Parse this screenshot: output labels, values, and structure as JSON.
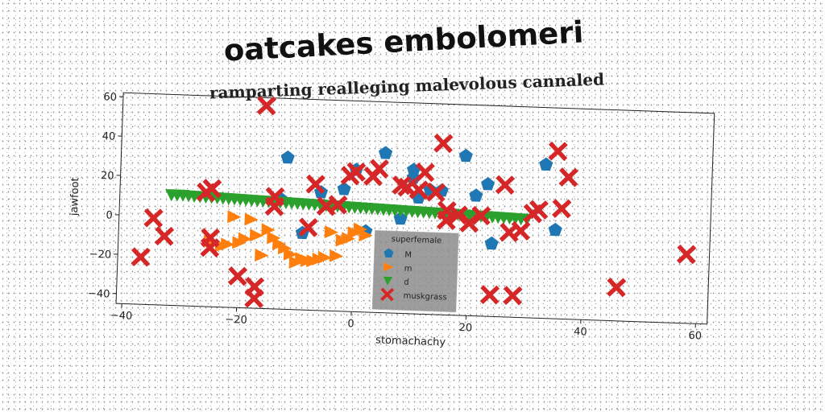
{
  "chart_data": {
    "type": "scatter",
    "title": "oatcakes embolomeri",
    "subtitle": "ramparting realleging malevolous cannaled",
    "xlabel": "stomachachy",
    "ylabel": "jawfoot",
    "xlim": [
      -41,
      62
    ],
    "ylim": [
      -45,
      62
    ],
    "xticks": [
      "−40",
      "−20",
      "0",
      "20",
      "40",
      "60"
    ],
    "xtick_values": [
      -40,
      -20,
      0,
      20,
      40,
      60
    ],
    "yticks": [
      "−40",
      "−20",
      "0",
      "20",
      "40",
      "60"
    ],
    "ytick_values": [
      -40,
      -20,
      0,
      20,
      40,
      60
    ],
    "grid": false,
    "legend": {
      "title": "superfemale",
      "position": "center-bottom"
    },
    "series": [
      {
        "name": "M",
        "marker": "pentagon",
        "color": "#1f77b4",
        "x": [
          -12,
          0,
          5,
          10,
          10,
          13,
          15,
          19,
          21,
          23,
          33,
          35,
          -13,
          -6,
          -2,
          2,
          8,
          11,
          -9,
          24
        ],
        "y": [
          32,
          27,
          36,
          28,
          24,
          18,
          18,
          36,
          16,
          22,
          33,
          0,
          11,
          15,
          17,
          -4,
          3,
          14,
          -6,
          -8
        ]
      },
      {
        "name": "m",
        "marker": "triangle-right",
        "color": "#ff7f0e",
        "x": [
          -21,
          -18,
          -15,
          -14,
          -13,
          -12,
          -11,
          -9,
          -8,
          -7,
          -6,
          -5,
          -3,
          -2,
          -1,
          0,
          1,
          -25,
          -23,
          -22,
          -20,
          -19,
          -17,
          -16,
          -10,
          -4,
          2
        ],
        "y": [
          1,
          0,
          -5,
          -9,
          -12,
          -14,
          -17,
          -19,
          -20,
          -20,
          -19,
          -18,
          -17,
          -9,
          -8,
          -5,
          -3,
          -12,
          -14,
          -13,
          -12,
          -10,
          -8,
          -18,
          -21,
          -5,
          -6
        ]
      },
      {
        "name": "d",
        "marker": "triangle-down",
        "color": "#2ca02c",
        "x": [
          -32,
          -31,
          -30,
          -29,
          -28,
          -27,
          -26,
          -25,
          -24,
          -23,
          -22,
          -21,
          -20,
          -19,
          -18,
          -17,
          -16,
          -15,
          -14,
          -13,
          -12,
          -11,
          -10,
          -9,
          -8,
          -7,
          -6,
          -5,
          -4,
          -3,
          -2,
          -1,
          0,
          1,
          2,
          3,
          4,
          5,
          6,
          7,
          8,
          9,
          10,
          11,
          12,
          13,
          14,
          15,
          16,
          17,
          18,
          19,
          20,
          21,
          22,
          23,
          24,
          25,
          26,
          27,
          28,
          29,
          30
        ],
        "y": [
          11,
          11,
          11,
          10.8,
          10.7,
          10.6,
          10.5,
          10.4,
          10.3,
          10.2,
          10.1,
          10,
          9.9,
          9.8,
          9.7,
          9.6,
          9.5,
          9.4,
          9.3,
          9.2,
          9.1,
          9,
          8.9,
          8.8,
          8.7,
          8.6,
          8.5,
          8.4,
          8.3,
          8.2,
          8.1,
          8,
          7.9,
          7.8,
          7.7,
          7.6,
          7.5,
          7.4,
          7.3,
          7.2,
          7.1,
          7,
          6.9,
          6.8,
          6.7,
          6.6,
          6.5,
          6.4,
          6.3,
          6.2,
          6.1,
          6,
          5.9,
          5.8,
          5.7,
          5.6,
          5.5,
          5.4,
          5.3,
          5.2,
          5.1,
          5,
          4.9
        ]
      },
      {
        "name": "muskgrass",
        "marker": "x-filled",
        "color": "#d62728",
        "x": [
          -16,
          -35,
          -33,
          -37,
          -25,
          -26,
          -25,
          -25,
          -20,
          -17,
          -17,
          -14,
          -14,
          -8,
          -7,
          -5,
          -3,
          0,
          -1,
          3,
          4,
          8,
          9,
          11,
          12,
          14,
          15,
          16,
          16,
          18,
          20,
          22,
          26,
          27,
          28,
          29,
          31,
          32,
          35,
          36,
          37,
          46,
          58,
          24
        ],
        "y": [
          58,
          -1,
          -10,
          -21,
          15,
          13,
          -10,
          -15,
          -29,
          -40,
          -34,
          7,
          12,
          -3,
          19,
          8,
          9,
          26,
          24,
          24,
          28,
          20,
          19,
          18,
          27,
          17,
          42,
          3,
          8,
          6,
          2,
          6,
          22,
          -2,
          -34,
          -1,
          8,
          10,
          40,
          11,
          27,
          -28,
          -10,
          -34
        ]
      }
    ]
  }
}
